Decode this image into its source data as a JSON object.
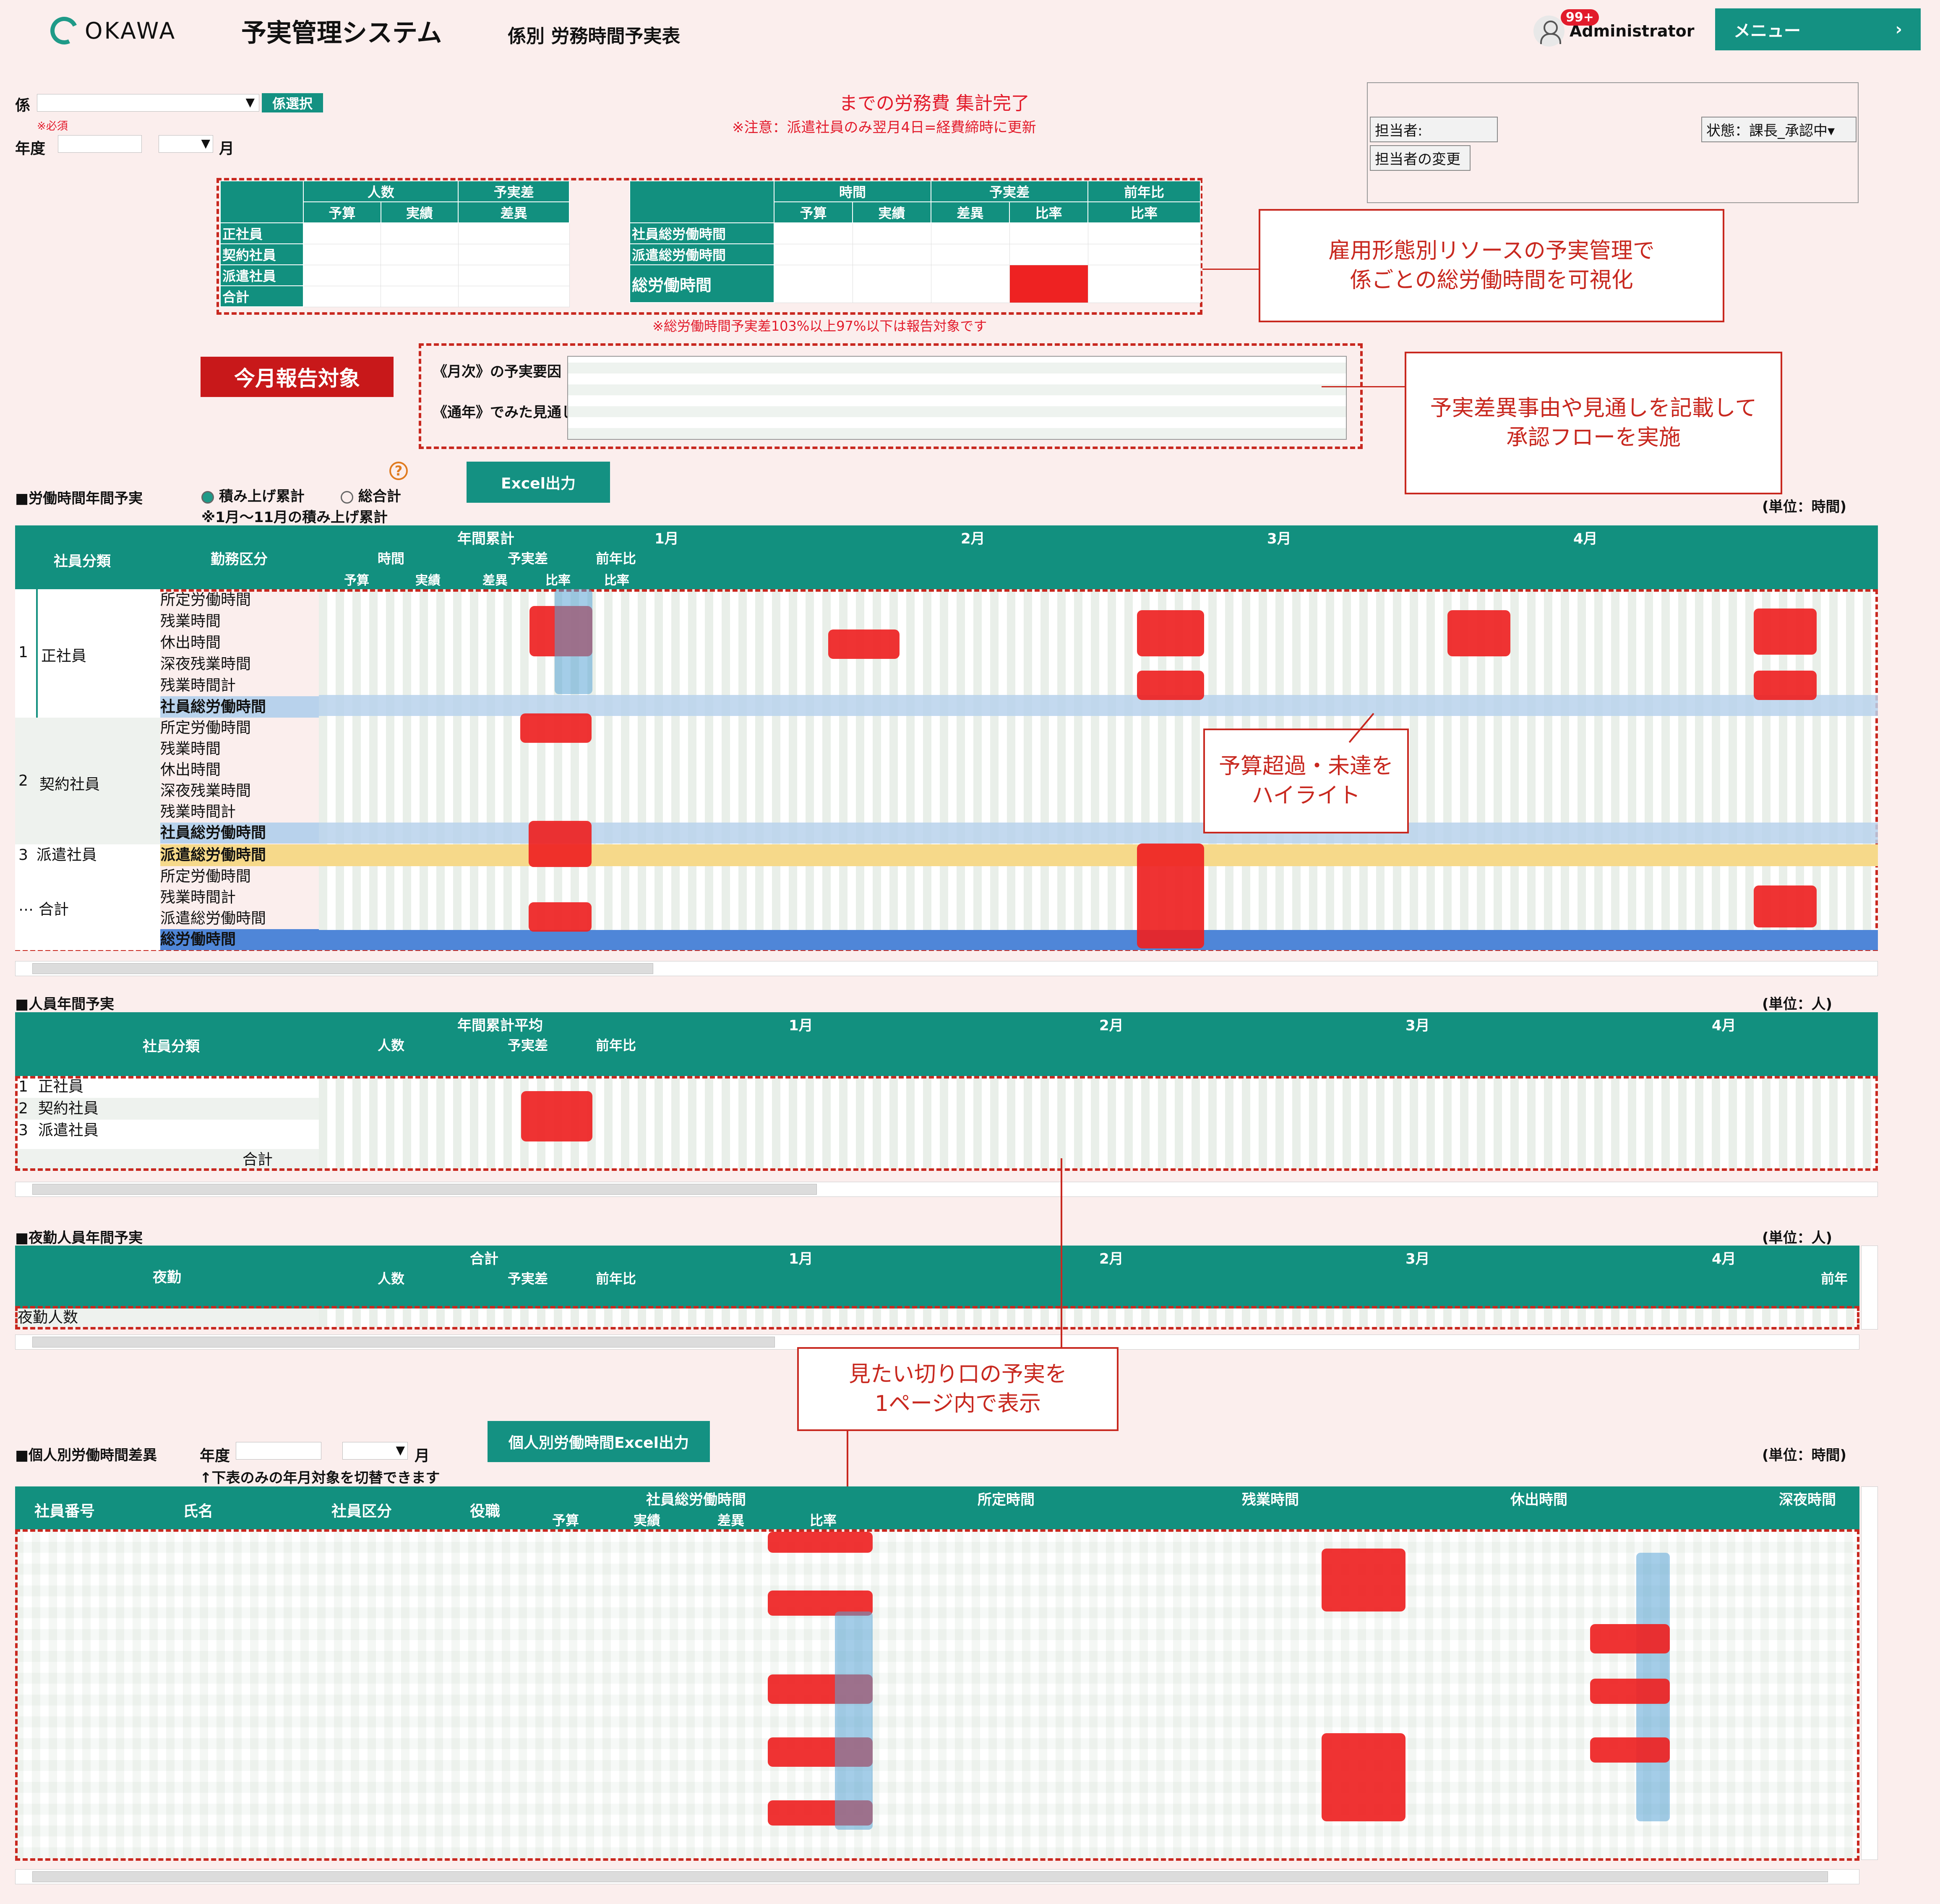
{
  "header": {
    "logo_text": "OKAWA",
    "system_title": "予実管理システム",
    "page_subtitle": "係別 労務時間予実表",
    "badge": "99+",
    "user_name": "Administrator",
    "menu_label": "メニュー",
    "menu_chevron": "›"
  },
  "filters": {
    "kakari_label": "係",
    "kakari_button": "係選択",
    "required": "※必須",
    "year_label": "年度",
    "month_label": "月",
    "dropdown_arrow": "▼"
  },
  "notice": {
    "line1": "までの労務費 集計完了",
    "line2": "※注意：派遣社員のみ翌月4日=経費締時に更新"
  },
  "approval": {
    "assignee_label": "担当者:",
    "status": "状態：課長_承認中▾",
    "change_button": "担当者の変更"
  },
  "summary_people": {
    "h_ninzu": "人数",
    "h_yojitsu": "予実差",
    "h_yosan": "予算",
    "h_jisseki": "実績",
    "h_sai": "差異",
    "rows": [
      "正社員",
      "契約社員",
      "派遣社員",
      "合計"
    ]
  },
  "summary_hours": {
    "h_jikan": "時間",
    "h_yojitsu": "予実差",
    "h_zennen": "前年比",
    "h_yosan": "予算",
    "h_jisseki": "実績",
    "h_sai": "差異",
    "h_hiritsu": "比率",
    "rows": [
      "社員総労働時間",
      "派遣総労働時間",
      "総労働時間"
    ],
    "note": "※総労働時間予実差103%以上97%以下は報告対象です"
  },
  "report": {
    "button": "今月報告対象",
    "monthly_label": "《月次》の予実要因",
    "yearly_label": "《通年》でみた見通し"
  },
  "callouts": {
    "c1": "雇用形態別リソースの予実管理で\n係ごとの総労働時間を可視化",
    "c2": "予実差異事由や見通しを記載して\n承認フローを実施",
    "c3": "予算超過・未達を\nハイライト",
    "c4": "見たい切り口の予実を\n1ページ内で表示"
  },
  "labor": {
    "title": "■労働時間年間予実",
    "radio1": "積み上げ累計",
    "radio2": "総合計",
    "note": "※1月～11月の積み上げ累計",
    "excel": "Excel出力",
    "unit": "(単位：時間)",
    "h_bunrui": "社員分類",
    "h_kubun": "勤務区分",
    "col_groups": [
      "年間累計",
      "1月",
      "2月",
      "3月",
      "4月"
    ],
    "sub_groups": [
      "時間",
      "予実差",
      "前年比"
    ],
    "sub_cols": [
      "予算",
      "実績",
      "差異",
      "比率",
      "比率"
    ],
    "groups": [
      {
        "no": "1",
        "name": "正社員",
        "rows": [
          "所定労働時間",
          "残業時間",
          "休出時間",
          "深夜残業時間",
          "残業時間計",
          "社員総労働時間"
        ]
      },
      {
        "no": "2",
        "name": "契約社員",
        "rows": [
          "所定労働時間",
          "残業時間",
          "休出時間",
          "深夜残業時間",
          "残業時間計",
          "社員総労働時間"
        ]
      },
      {
        "no": "3",
        "name": "派遣社員",
        "rows": [
          "派遣総労働時間"
        ]
      },
      {
        "no": "…",
        "name": "合計",
        "rows": [
          "所定労働時間",
          "残業時間計",
          "派遣総労働時間",
          "総労働時間"
        ]
      }
    ]
  },
  "people": {
    "title": "■人員年間予実",
    "unit": "(単位：人)",
    "h_bunrui": "社員分類",
    "col_groups": [
      "年間累計平均",
      "1月",
      "2月",
      "3月",
      "4月"
    ],
    "sub_groups": [
      "人数",
      "予実差",
      "前年比"
    ],
    "rows": [
      {
        "no": "1",
        "name": "正社員"
      },
      {
        "no": "2",
        "name": "契約社員"
      },
      {
        "no": "3",
        "name": "派遣社員"
      }
    ],
    "total": "合計"
  },
  "night": {
    "title": "■夜勤人員年間予実",
    "unit": "(単位：人)",
    "h_yakin": "夜勤",
    "col_groups": [
      "合計",
      "1月",
      "2月",
      "3月",
      "4月"
    ],
    "sub_groups": [
      "人数",
      "予実差",
      "前年比"
    ],
    "last_header": "前年",
    "row": "夜勤人数"
  },
  "individual": {
    "title": "■個人別労働時間差異",
    "year_label": "年度",
    "month_label": "月",
    "excel": "個人別労働時間Excel出力",
    "note": "↑下表のみの年月対象を切替できます",
    "unit": "(単位：時間)",
    "cols": [
      "社員番号",
      "氏名",
      "社員区分",
      "役職"
    ],
    "groups": [
      "社員総労働時間",
      "所定時間",
      "残業時間",
      "休出時間",
      "深夜時間"
    ],
    "sub_cols": [
      "予算",
      "実績",
      "差異",
      "比率"
    ]
  },
  "colors": {
    "teal": "#12907f",
    "red": "#c8181a",
    "bg": "#fbeeed"
  }
}
